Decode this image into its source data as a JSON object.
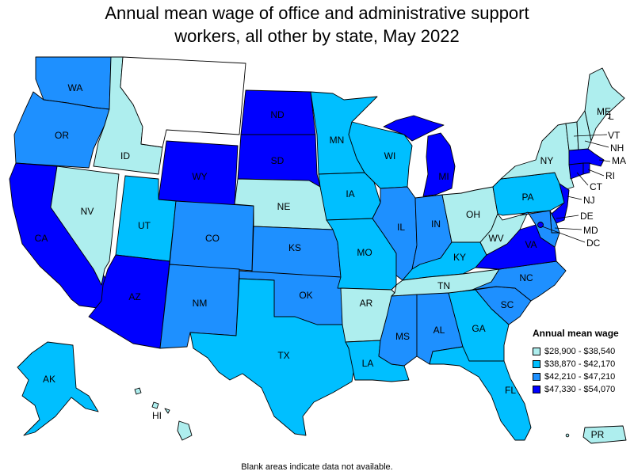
{
  "title_line1": "Annual mean wage of office and administrative support",
  "title_line2": "workers, all other by state, May 2022",
  "footnote": "Blank areas indicate data not available.",
  "legend": {
    "title": "Annual mean wage",
    "items": [
      {
        "label": "$28,900 - $38,540",
        "color": "#aeeeee"
      },
      {
        "label": "$38,870 - $42,170",
        "color": "#00bfff"
      },
      {
        "label": "$42,210 - $47,210",
        "color": "#1e90ff"
      },
      {
        "label": "$47,330 - $54,070",
        "color": "#0000ff"
      }
    ]
  },
  "no_data_color": "#ffffff",
  "states": {
    "WA": 2,
    "OR": 2,
    "CA": 3,
    "NV": 0,
    "ID": 0,
    "MT": null,
    "WY": 3,
    "UT": 1,
    "AZ": 3,
    "CO": 2,
    "NM": 2,
    "ND": 3,
    "SD": 3,
    "NE": 0,
    "KS": 2,
    "OK": 2,
    "TX": 1,
    "MN": 1,
    "IA": 1,
    "MO": 1,
    "AR": 0,
    "LA": 1,
    "WI": 1,
    "IL": 2,
    "MI": 3,
    "IN": 2,
    "OH": 0,
    "KY": 1,
    "TN": 0,
    "MS": 2,
    "AL": 2,
    "GA": 1,
    "FL": 1,
    "SC": 2,
    "NC": 2,
    "VA": 3,
    "WV": 0,
    "PA": 1,
    "NY": 0,
    "VT": 0,
    "NH": 0,
    "ME": 0,
    "MA": 3,
    "RI": 3,
    "CT": 3,
    "NJ": 3,
    "DE": 2,
    "MD": 2,
    "DC": 3,
    "AK": 1,
    "HI": 0,
    "PR": 0
  }
}
